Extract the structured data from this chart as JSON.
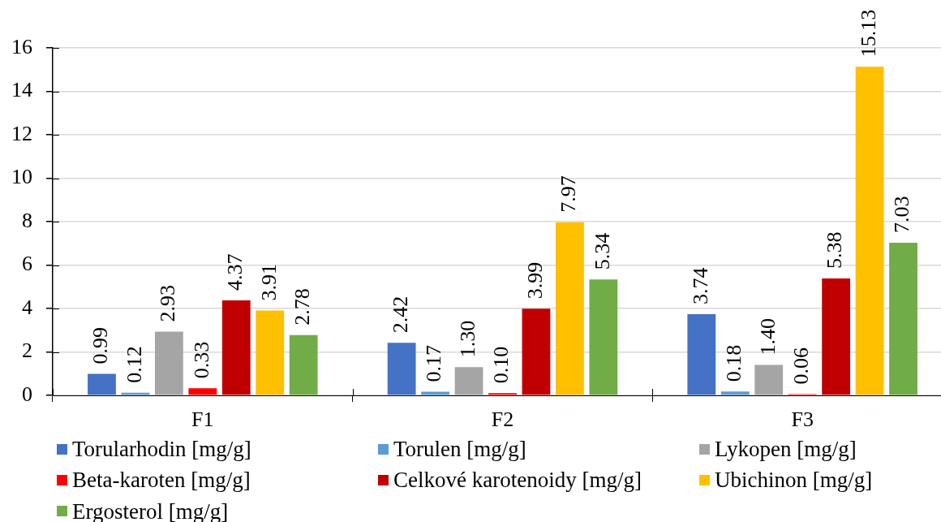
{
  "chart_data": {
    "type": "bar",
    "categories": [
      "F1",
      "F2",
      "F3"
    ],
    "series": [
      {
        "name": "Torularhodin [mg/g]",
        "color": "#4472c4",
        "values": [
          0.99,
          2.42,
          3.74
        ],
        "value_labels": [
          "0.99",
          "2.42",
          "3.74"
        ]
      },
      {
        "name": "Torulen [mg/g]",
        "color": "#5b9bd5",
        "values": [
          0.12,
          0.17,
          0.18
        ],
        "value_labels": [
          "0.12",
          "0.17",
          "0.18"
        ]
      },
      {
        "name": "Lykopen [mg/g]",
        "color": "#a5a5a5",
        "values": [
          2.93,
          1.3,
          1.4
        ],
        "value_labels": [
          "2.93",
          "1.30",
          "1.40"
        ]
      },
      {
        "name": "Beta-karoten [mg/g]",
        "color": "#ff0000",
        "values": [
          0.33,
          0.1,
          0.06
        ],
        "value_labels": [
          "0.33",
          "0.10",
          "0.06"
        ]
      },
      {
        "name": "Celkové karotenoidy [mg/g]",
        "color": "#c00000",
        "values": [
          4.37,
          3.99,
          5.38
        ],
        "value_labels": [
          "4.37",
          "3.99",
          "5.38"
        ]
      },
      {
        "name": "Ubichinon [mg/g]",
        "color": "#ffc000",
        "values": [
          3.91,
          7.97,
          15.13
        ],
        "value_labels": [
          "3.91",
          "7.97",
          "15.13"
        ]
      },
      {
        "name": "Ergosterol [mg/g]",
        "color": "#70ad47",
        "values": [
          2.78,
          5.34,
          7.03
        ],
        "value_labels": [
          "2.78",
          "5.34",
          "7.03"
        ]
      }
    ],
    "ylim": [
      0,
      16
    ],
    "yticks": [
      0,
      2,
      4,
      6,
      8,
      10,
      12,
      14,
      16
    ],
    "grid": "y",
    "legend": "bottom"
  }
}
